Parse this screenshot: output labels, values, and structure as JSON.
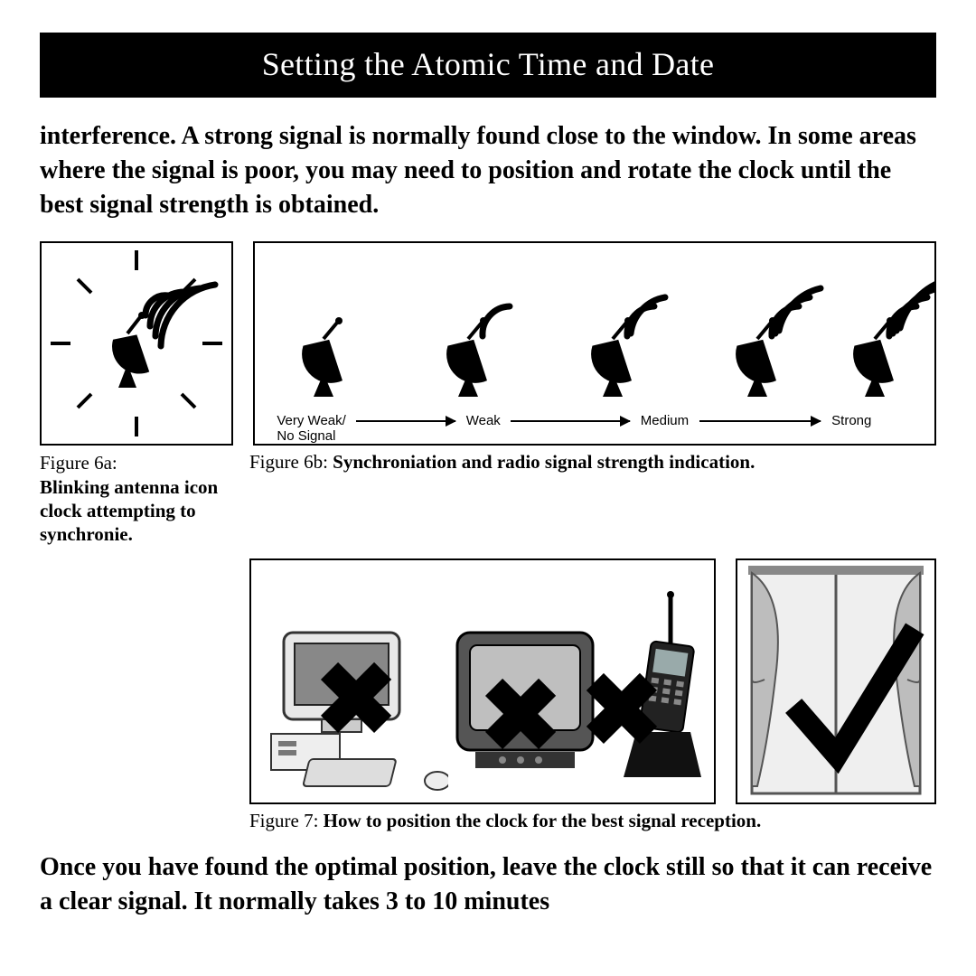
{
  "title": "Setting the Atomic Time and Date",
  "para1": "interference. A strong signal is normally found close to the window. In some areas where the signal is poor, you may need to position and rotate the clock until the best signal strength is obtained.",
  "fig6a": {
    "label": "Figure 6a:",
    "caption": "Blinking antenna icon clock attempting to synchronie."
  },
  "fig6b": {
    "label": "Figure 6b:",
    "caption": "Synchroniation and radio signal strength indication.",
    "levels": [
      "Very Weak/\nNo Signal",
      "Weak",
      "Medium",
      "Strong"
    ],
    "arcs": [
      0,
      1,
      2,
      3,
      4
    ]
  },
  "fig7": {
    "label": "Figure 7:",
    "caption": "How to position the clock for the best signal reception."
  },
  "para2": "Once you have found the optimal position, leave the clock still so that it can receive a clear signal. It normally takes 3 to 10 minutes"
}
